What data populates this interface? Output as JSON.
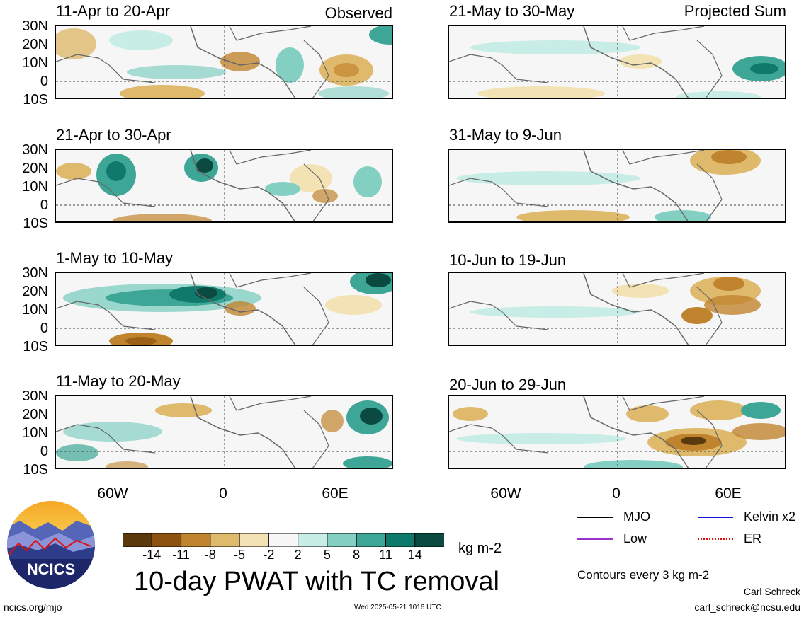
{
  "header": {
    "observed": "Observed",
    "projected": "Projected Sum"
  },
  "panels_left": [
    "11-Apr to 20-Apr",
    "21-Apr to 30-Apr",
    "1-May to 10-May",
    "11-May to 20-May"
  ],
  "panels_right": [
    "21-May to 30-May",
    "31-May to 9-Jun",
    "10-Jun to 19-Jun",
    "20-Jun to 29-Jun"
  ],
  "lat_labels": [
    "30N",
    "20N",
    "10N",
    "0",
    "10S"
  ],
  "lon_labels": [
    "60W",
    "0",
    "60E"
  ],
  "colorbar": {
    "ticks": [
      "-14",
      "-11",
      "-8",
      "-5",
      "-2",
      "2",
      "5",
      "8",
      "11",
      "14"
    ],
    "colors": [
      "#5a3a0c",
      "#8c5210",
      "#c0842f",
      "#dfb96c",
      "#f3e2b3",
      "#f7f7f7",
      "#c8ece6",
      "#83d0c3",
      "#3ea696",
      "#0f7a6c",
      "#0a4a40"
    ],
    "unit": "kg m-2"
  },
  "main_title": "10-day PWAT with TC removal",
  "legend": [
    {
      "label": "MJO",
      "color": "#000000"
    },
    {
      "label": "Kelvin x2",
      "color": "#1010e0"
    },
    {
      "label": "Low",
      "color": "#9933cc"
    },
    {
      "label": "ER",
      "color": "#e01010"
    }
  ],
  "contours_note": "Contours every 3 kg m-2",
  "logo_text": "NCICS",
  "footer": {
    "left": "ncics.org/mjo",
    "center": "Wed 2025-05-21 1016 UTC",
    "author": "Carl Schreck",
    "email": "carl_schreck@ncsu.edu"
  }
}
